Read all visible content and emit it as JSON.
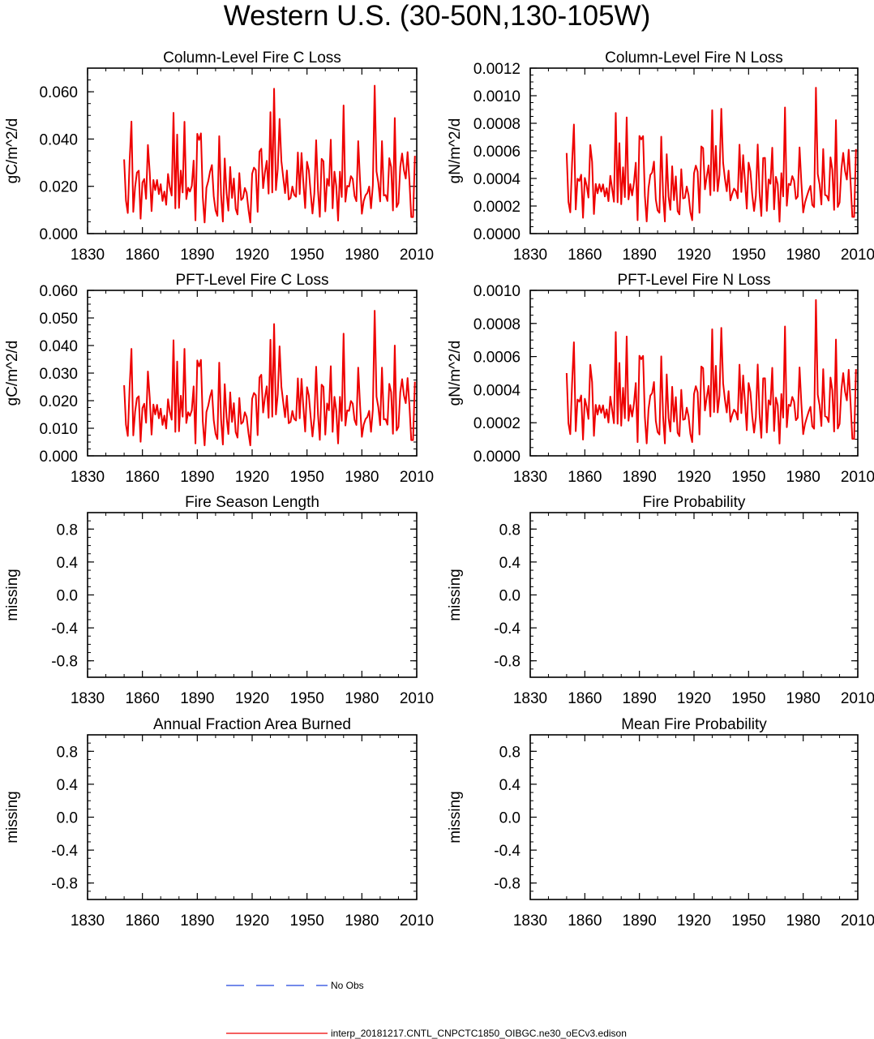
{
  "page_title": "Western U.S. (30-50N,130-105W)",
  "legend": {
    "obs_label": "No Obs",
    "obs_color": "#2244dd",
    "model_label": "interp_20181217.CNTL_CNPCTC1850_OIBGC.ne30_oECv3.edison",
    "model_color": "#ee0000"
  },
  "chart_data": [
    {
      "type": "line",
      "title": "Column-Level Fire C Loss",
      "ylabel": "gC/m^2/d",
      "xlim": [
        1830,
        2010
      ],
      "xticks": [
        1830,
        1860,
        1890,
        1920,
        1950,
        1980,
        2010
      ],
      "ylim": [
        0,
        0.07
      ],
      "yticks": [
        0,
        0.02,
        0.04,
        0.06
      ],
      "ytick_labels": [
        "0.000",
        "0.020",
        "0.040",
        "0.060"
      ],
      "series": [
        {
          "name": "interp_20181217.CNTL_CNPCTC1850_OIBGC.ne30_oECv3.edison",
          "x_start": 1850,
          "values": [
            0.0314,
            0.014,
            0.0087,
            0.0307,
            0.0474,
            0.0092,
            0.0197,
            0.0258,
            0.0266,
            0.0063,
            0.0216,
            0.0231,
            0.0147,
            0.0375,
            0.0259,
            0.0095,
            0.0227,
            0.0184,
            0.0227,
            0.0167,
            0.0209,
            0.0138,
            0.0178,
            0.0122,
            0.0252,
            0.0196,
            0.0161,
            0.0511,
            0.0107,
            0.0419,
            0.0109,
            0.0267,
            0.0174,
            0.0473,
            0.0146,
            0.0194,
            0.0178,
            0.0202,
            0.0309,
            0.0056,
            0.0422,
            0.0396,
            0.0424,
            0.0155,
            0.0047,
            0.0194,
            0.0222,
            0.0263,
            0.029,
            0.0158,
            0.0098,
            0.0075,
            0.0412,
            0.0163,
            0.0051,
            0.0318,
            0.0172,
            0.0097,
            0.0282,
            0.0151,
            0.0233,
            0.0105,
            0.0081,
            0.0256,
            0.0142,
            0.0151,
            0.0193,
            0.0172,
            0.0101,
            0.0047,
            0.0253,
            0.0279,
            0.0269,
            0.0092,
            0.0347,
            0.0359,
            0.0192,
            0.0259,
            0.0308,
            0.0169,
            0.0514,
            0.0174,
            0.0613,
            0.0184,
            0.0273,
            0.0485,
            0.0306,
            0.0237,
            0.0171,
            0.0267,
            0.0144,
            0.0151,
            0.0199,
            0.0164,
            0.0156,
            0.0343,
            0.0167,
            0.0341,
            0.0216,
            0.0108,
            0.0304,
            0.0268,
            0.0172,
            0.0085,
            0.0169,
            0.0395,
            0.0185,
            0.0071,
            0.0316,
            0.0306,
            0.0094,
            0.0232,
            0.0202,
            0.0397,
            0.0107,
            0.0262,
            0.0201,
            0.0055,
            0.0262,
            0.0155,
            0.0542,
            0.0135,
            0.0202,
            0.0199,
            0.0243,
            0.0231,
            0.0159,
            0.0137,
            0.0391,
            0.0226,
            0.0084,
            0.0138,
            0.0162,
            0.0172,
            0.0199,
            0.0107,
            0.0204,
            0.0626,
            0.0263,
            0.0215,
            0.0136,
            0.0391,
            0.0161,
            0.0163,
            0.0138,
            0.0319,
            0.0282,
            0.0098,
            0.0489,
            0.0112,
            0.0129,
            0.0282,
            0.0339,
            0.0268,
            0.0233,
            0.0345,
            0.0225,
            0.007,
            0.007,
            0.0329
          ]
        }
      ]
    },
    {
      "type": "line",
      "title": "Column-Level Fire N Loss",
      "ylabel": "gN/m^2/d",
      "xlim": [
        1830,
        2010
      ],
      "xticks": [
        1830,
        1860,
        1890,
        1920,
        1950,
        1980,
        2010
      ],
      "ylim": [
        0,
        0.0012
      ],
      "yticks": [
        0,
        0.0002,
        0.0004,
        0.0006,
        0.0008,
        0.001,
        0.0012
      ],
      "ytick_labels": [
        "0.0000",
        "0.0002",
        "0.0004",
        "0.0006",
        "0.0008",
        "0.0010",
        "0.0012"
      ],
      "series": [
        {
          "name": "interp_20181217.CNTL_CNPCTC1850_OIBGC.ne30_oECv3.edison",
          "x_start": 1850,
          "values": [
            0.000584,
            0.00023,
            0.000154,
            0.000513,
            0.000791,
            0.000175,
            0.000398,
            0.000382,
            0.000427,
            0.000115,
            0.000404,
            0.000348,
            0.000261,
            0.000643,
            0.000521,
            0.000142,
            0.00036,
            0.000292,
            0.000358,
            0.000304,
            0.000357,
            0.000269,
            0.000329,
            0.000235,
            0.000419,
            0.000325,
            0.000231,
            0.000875,
            0.000227,
            0.000656,
            0.000213,
            0.000481,
            0.000265,
            0.000843,
            0.000248,
            0.000359,
            0.000277,
            0.000369,
            0.000514,
            9.7e-05,
            0.000708,
            0.000683,
            0.000707,
            0.000273,
            8.8e-05,
            0.000329,
            0.000426,
            0.000443,
            0.000522,
            0.000247,
            0.000168,
            0.000151,
            0.000703,
            0.000279,
            8.8e-05,
            0.000576,
            0.000269,
            0.000172,
            0.000488,
            0.000242,
            0.000415,
            0.000163,
            0.000139,
            0.000467,
            0.000255,
            0.00026,
            0.000341,
            0.00028,
            0.000156,
            9.7e-05,
            0.000437,
            0.000493,
            0.000449,
            0.000151,
            0.000632,
            0.00062,
            0.000321,
            0.000414,
            0.000495,
            0.000279,
            0.000895,
            0.00031,
            0.000636,
            0.000307,
            0.000427,
            0.000905,
            0.000514,
            0.000397,
            0.000307,
            0.000457,
            0.000241,
            0.000289,
            0.000326,
            0.000308,
            0.000256,
            0.000645,
            0.000302,
            0.000569,
            0.000384,
            0.000181,
            0.000515,
            0.000451,
            0.000282,
            0.000164,
            0.000275,
            0.000646,
            0.000297,
            0.000128,
            0.000548,
            0.000549,
            0.000165,
            0.000393,
            0.000361,
            0.000623,
            0.000176,
            0.000412,
            0.000358,
            8.6e-05,
            0.000438,
            0.00027,
            0.000915,
            0.000202,
            0.000361,
            0.000352,
            0.000417,
            0.000383,
            0.000251,
            0.000269,
            0.000625,
            0.000369,
            0.000153,
            0.000226,
            0.00027,
            0.000312,
            0.000346,
            0.000208,
            0.000192,
            0.001058,
            0.000432,
            0.000358,
            0.000211,
            0.000613,
            0.00028,
            0.000274,
            0.000239,
            0.000553,
            0.000463,
            0.000172,
            0.000823,
            0.000193,
            0.000226,
            0.000469,
            0.000585,
            0.000454,
            0.000392,
            0.000608,
            0.000382,
            0.000121,
            0.000121,
            0.000613
          ]
        }
      ]
    },
    {
      "type": "line",
      "title": "PFT-Level Fire C Loss",
      "ylabel": "gC/m^2/d",
      "xlim": [
        1830,
        2010
      ],
      "xticks": [
        1830,
        1860,
        1890,
        1920,
        1950,
        1980,
        2010
      ],
      "ylim": [
        0,
        0.06
      ],
      "yticks": [
        0,
        0.01,
        0.02,
        0.03,
        0.04,
        0.05,
        0.06
      ],
      "ytick_labels": [
        "0.000",
        "0.010",
        "0.020",
        "0.030",
        "0.040",
        "0.050",
        "0.060"
      ],
      "series": [
        {
          "name": "interp_20181217.CNTL_CNPCTC1850_OIBGC.ne30_oECv3.edison",
          "x_start": 1850,
          "values": [
            0.0256,
            0.0113,
            0.0072,
            0.0249,
            0.0388,
            0.0074,
            0.016,
            0.0209,
            0.0216,
            0.0051,
            0.0173,
            0.0189,
            0.012,
            0.0306,
            0.0211,
            0.0077,
            0.0186,
            0.015,
            0.0185,
            0.0136,
            0.0171,
            0.0112,
            0.0146,
            0.0099,
            0.0205,
            0.016,
            0.0131,
            0.0419,
            0.0087,
            0.0342,
            0.0089,
            0.0218,
            0.0142,
            0.0388,
            0.0119,
            0.0158,
            0.0145,
            0.0165,
            0.0252,
            0.0045,
            0.0346,
            0.0324,
            0.0348,
            0.0126,
            0.0038,
            0.0159,
            0.0182,
            0.0215,
            0.0238,
            0.0129,
            0.008,
            0.0061,
            0.0338,
            0.0133,
            0.0041,
            0.026,
            0.0141,
            0.0079,
            0.023,
            0.0123,
            0.0191,
            0.0086,
            0.0066,
            0.021,
            0.0116,
            0.0123,
            0.0158,
            0.0141,
            0.0082,
            0.0038,
            0.0207,
            0.0228,
            0.022,
            0.0075,
            0.0284,
            0.0294,
            0.0157,
            0.0212,
            0.0252,
            0.0138,
            0.0421,
            0.0142,
            0.0478,
            0.015,
            0.0223,
            0.0397,
            0.025,
            0.0194,
            0.014,
            0.0218,
            0.0118,
            0.0123,
            0.0163,
            0.0134,
            0.0128,
            0.0281,
            0.0136,
            0.0279,
            0.0177,
            0.0088,
            0.0249,
            0.0219,
            0.0141,
            0.007,
            0.0138,
            0.0323,
            0.0151,
            0.0058,
            0.0258,
            0.025,
            0.0077,
            0.019,
            0.0165,
            0.0325,
            0.0087,
            0.0214,
            0.0164,
            0.0045,
            0.0214,
            0.0127,
            0.0443,
            0.011,
            0.0165,
            0.0163,
            0.0199,
            0.0189,
            0.013,
            0.0112,
            0.032,
            0.0185,
            0.0069,
            0.0113,
            0.0133,
            0.0141,
            0.0163,
            0.0087,
            0.0167,
            0.0526,
            0.0215,
            0.0176,
            0.0111,
            0.032,
            0.0132,
            0.0133,
            0.0113,
            0.0261,
            0.0231,
            0.008,
            0.04,
            0.0092,
            0.0105,
            0.0231,
            0.0278,
            0.0219,
            0.0191,
            0.0282,
            0.0184,
            0.0057,
            0.0057,
            0.0269
          ]
        }
      ]
    },
    {
      "type": "line",
      "title": "PFT-Level Fire N Loss",
      "ylabel": "gN/m^2/d",
      "xlim": [
        1830,
        2010
      ],
      "xticks": [
        1830,
        1860,
        1890,
        1920,
        1950,
        1980,
        2010
      ],
      "ylim": [
        0,
        0.001
      ],
      "yticks": [
        0,
        0.0002,
        0.0004,
        0.0006,
        0.0008,
        0.001
      ],
      "ytick_labels": [
        "0.0000",
        "0.0002",
        "0.0004",
        "0.0006",
        "0.0008",
        "0.0010"
      ],
      "series": [
        {
          "name": "interp_20181217.CNTL_CNPCTC1850_OIBGC.ne30_oECv3.edison",
          "x_start": 1850,
          "values": [
            0.0005,
            0.000196,
            0.000131,
            0.000438,
            0.000686,
            0.000149,
            0.00034,
            0.000327,
            0.000365,
            9.8e-05,
            0.000345,
            0.000298,
            0.000223,
            0.00055,
            0.000446,
            0.000121,
            0.000308,
            0.000249,
            0.000306,
            0.00026,
            0.000305,
            0.00023,
            0.000281,
            0.000201,
            0.000358,
            0.000278,
            0.000197,
            0.000748,
            0.000194,
            0.000561,
            0.000182,
            0.000411,
            0.000227,
            0.000721,
            0.000212,
            0.000307,
            0.000237,
            0.000316,
            0.00044,
            8.3e-05,
            0.000605,
            0.000584,
            0.000604,
            0.000233,
            7.5e-05,
            0.000281,
            0.000364,
            0.000379,
            0.000446,
            0.000211,
            0.000144,
            0.000129,
            0.000601,
            0.000239,
            7.5e-05,
            0.000492,
            0.00023,
            0.000147,
            0.000417,
            0.000207,
            0.000355,
            0.000139,
            0.000119,
            0.000399,
            0.000218,
            0.000222,
            0.000291,
            0.000239,
            0.000133,
            8.3e-05,
            0.000373,
            0.000421,
            0.000384,
            0.000129,
            0.00054,
            0.00053,
            0.000274,
            0.000354,
            0.000423,
            0.000238,
            0.000765,
            0.000265,
            0.000544,
            0.000262,
            0.000365,
            0.000773,
            0.000439,
            0.000339,
            0.000262,
            0.000391,
            0.000206,
            0.000247,
            0.000279,
            0.000263,
            0.000219,
            0.000551,
            0.000258,
            0.000486,
            0.000328,
            0.000155,
            0.00044,
            0.000385,
            0.000241,
            0.00014,
            0.000235,
            0.000552,
            0.000254,
            0.000109,
            0.000468,
            0.000469,
            0.000141,
            0.000336,
            0.000309,
            0.000532,
            0.00015,
            0.000352,
            0.000306,
            7.4e-05,
            0.000374,
            0.000231,
            0.000782,
            0.000173,
            0.000309,
            0.000301,
            0.000356,
            0.000327,
            0.000215,
            0.00023,
            0.000534,
            0.000315,
            0.000131,
            0.000193,
            0.000231,
            0.000267,
            0.000296,
            0.000178,
            0.000164,
            0.000942,
            0.000369,
            0.000306,
            0.00018,
            0.000524,
            0.000239,
            0.000234,
            0.000204,
            0.000473,
            0.000396,
            0.000147,
            0.000703,
            0.000165,
            0.000193,
            0.000401,
            0.0005,
            0.000388,
            0.000335,
            0.00052,
            0.000326,
            0.000103,
            0.000103,
            0.000524
          ]
        }
      ]
    },
    {
      "type": "line",
      "title": "Fire Season Length",
      "ylabel": "missing",
      "xlim": [
        1830,
        2010
      ],
      "xticks": [
        1830,
        1860,
        1890,
        1920,
        1950,
        1980,
        2010
      ],
      "ylim": [
        -1,
        1
      ],
      "yticks": [
        -0.8,
        -0.4,
        0,
        0.4,
        0.8
      ],
      "ytick_labels": [
        "-0.8",
        "-0.4",
        "0.0",
        "0.4",
        "0.8"
      ],
      "series": []
    },
    {
      "type": "line",
      "title": "Fire Probability",
      "ylabel": "missing",
      "xlim": [
        1830,
        2010
      ],
      "xticks": [
        1830,
        1860,
        1890,
        1920,
        1950,
        1980,
        2010
      ],
      "ylim": [
        -1,
        1
      ],
      "yticks": [
        -0.8,
        -0.4,
        0,
        0.4,
        0.8
      ],
      "ytick_labels": [
        "-0.8",
        "-0.4",
        "0.0",
        "0.4",
        "0.8"
      ],
      "series": []
    },
    {
      "type": "line",
      "title": "Annual Fraction Area Burned",
      "ylabel": "missing",
      "xlim": [
        1830,
        2010
      ],
      "xticks": [
        1830,
        1860,
        1890,
        1920,
        1950,
        1980,
        2010
      ],
      "ylim": [
        -1,
        1
      ],
      "yticks": [
        -0.8,
        -0.4,
        0,
        0.4,
        0.8
      ],
      "ytick_labels": [
        "-0.8",
        "-0.4",
        "0.0",
        "0.4",
        "0.8"
      ],
      "series": []
    },
    {
      "type": "line",
      "title": "Mean Fire Probability",
      "ylabel": "missing",
      "xlim": [
        1830,
        2010
      ],
      "xticks": [
        1830,
        1860,
        1890,
        1920,
        1950,
        1980,
        2010
      ],
      "ylim": [
        -1,
        1
      ],
      "yticks": [
        -0.8,
        -0.4,
        0,
        0.4,
        0.8
      ],
      "ytick_labels": [
        "-0.8",
        "-0.4",
        "0.0",
        "0.4",
        "0.8"
      ],
      "series": []
    }
  ]
}
